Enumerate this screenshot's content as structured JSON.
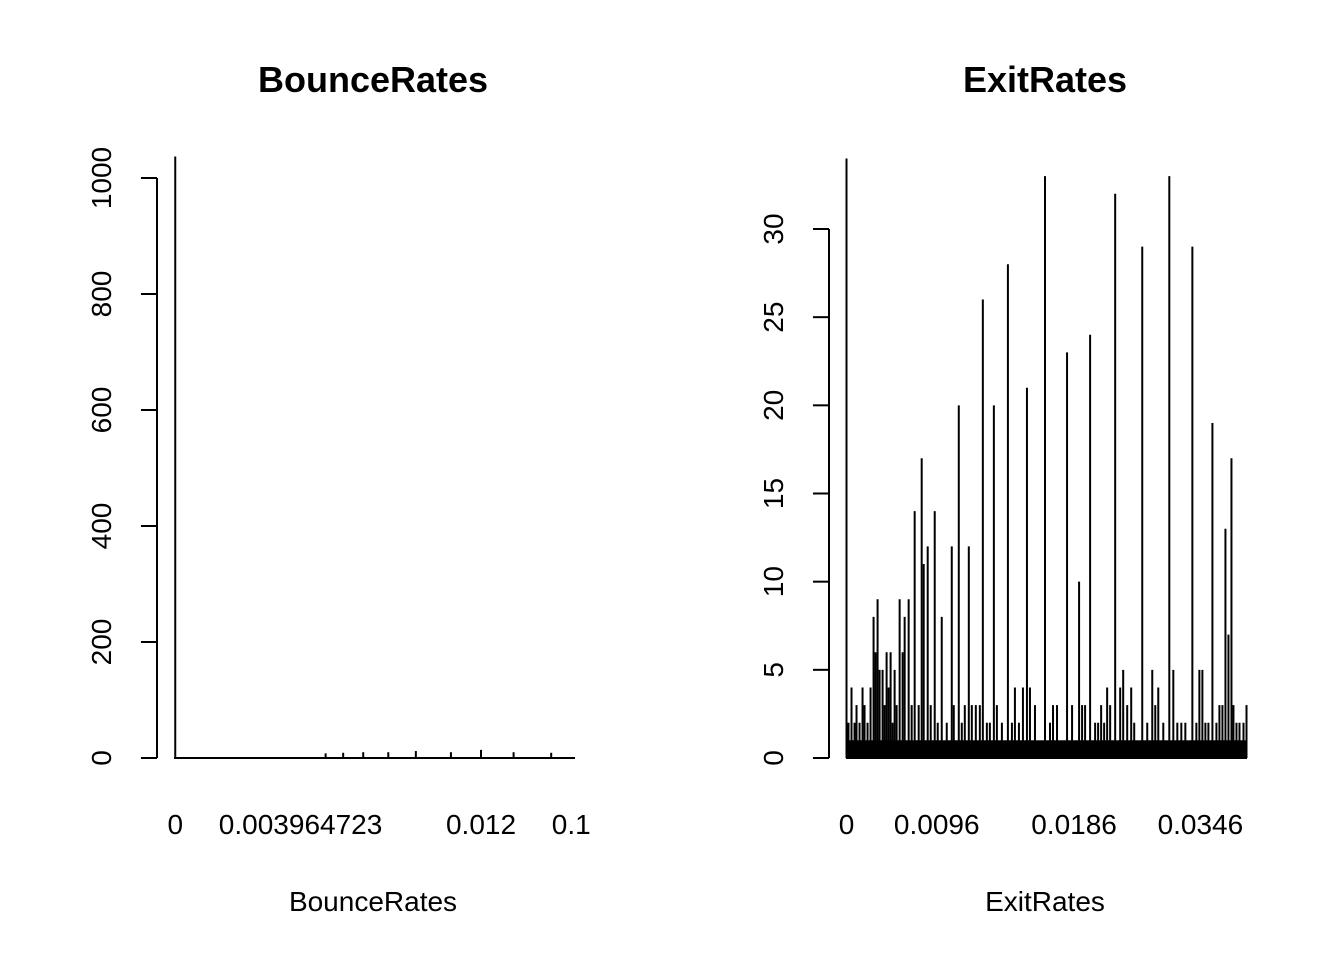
{
  "chart_data": [
    {
      "type": "bar",
      "title": "BounceRates",
      "xlabel": "BounceRates",
      "ylabel": "",
      "ylim": [
        0,
        1000
      ],
      "yticks": [
        "0",
        "200",
        "400",
        "600",
        "800",
        "1000"
      ],
      "xtick_labels": [
        {
          "label": "0",
          "index": 0
        },
        {
          "label": "0.003964723",
          "index": 50
        },
        {
          "label": "0.012",
          "index": 122
        },
        {
          "label": "0.1",
          "index": 158
        }
      ],
      "n_bins": 160,
      "baseline": 1,
      "peaks": [
        {
          "index": 0,
          "value": 1037
        },
        {
          "index": 60,
          "value": 8
        },
        {
          "index": 67,
          "value": 9
        },
        {
          "index": 75,
          "value": 10
        },
        {
          "index": 85,
          "value": 10
        },
        {
          "index": 96,
          "value": 12
        },
        {
          "index": 110,
          "value": 10
        },
        {
          "index": 122,
          "value": 14
        },
        {
          "index": 135,
          "value": 10
        },
        {
          "index": 150,
          "value": 9
        }
      ],
      "color": "#000000"
    },
    {
      "type": "bar",
      "title": "ExitRates",
      "xlabel": "ExitRates",
      "ylabel": "",
      "ylim": [
        0,
        30
      ],
      "yticks": [
        "0",
        "5",
        "10",
        "15",
        "20",
        "25",
        "30"
      ],
      "xtick_labels": [
        {
          "label": "0",
          "index": 0
        },
        {
          "label": "0.0096",
          "index": 90
        },
        {
          "label": "0.0186",
          "index": 227
        },
        {
          "label": "0.0346",
          "index": 353
        }
      ],
      "n_bins": 400,
      "baseline": 1,
      "peaks": [
        {
          "index": 0,
          "value": 34
        },
        {
          "index": 2,
          "value": 2
        },
        {
          "index": 5,
          "value": 4
        },
        {
          "index": 8,
          "value": 2
        },
        {
          "index": 10,
          "value": 3
        },
        {
          "index": 13,
          "value": 2
        },
        {
          "index": 16,
          "value": 4
        },
        {
          "index": 18,
          "value": 3
        },
        {
          "index": 21,
          "value": 2
        },
        {
          "index": 24,
          "value": 4
        },
        {
          "index": 27,
          "value": 8
        },
        {
          "index": 29,
          "value": 6
        },
        {
          "index": 31,
          "value": 9
        },
        {
          "index": 33,
          "value": 5
        },
        {
          "index": 36,
          "value": 5
        },
        {
          "index": 38,
          "value": 3
        },
        {
          "index": 40,
          "value": 6
        },
        {
          "index": 42,
          "value": 4
        },
        {
          "index": 44,
          "value": 6
        },
        {
          "index": 46,
          "value": 2
        },
        {
          "index": 48,
          "value": 5
        },
        {
          "index": 50,
          "value": 3
        },
        {
          "index": 53,
          "value": 9
        },
        {
          "index": 56,
          "value": 6
        },
        {
          "index": 58,
          "value": 8
        },
        {
          "index": 62,
          "value": 9
        },
        {
          "index": 65,
          "value": 3
        },
        {
          "index": 68,
          "value": 14
        },
        {
          "index": 72,
          "value": 3
        },
        {
          "index": 75,
          "value": 17
        },
        {
          "index": 77,
          "value": 11
        },
        {
          "index": 81,
          "value": 12
        },
        {
          "index": 84,
          "value": 3
        },
        {
          "index": 88,
          "value": 14
        },
        {
          "index": 91,
          "value": 2
        },
        {
          "index": 95,
          "value": 8
        },
        {
          "index": 100,
          "value": 2
        },
        {
          "index": 105,
          "value": 12
        },
        {
          "index": 107,
          "value": 3
        },
        {
          "index": 112,
          "value": 20
        },
        {
          "index": 115,
          "value": 2
        },
        {
          "index": 118,
          "value": 3
        },
        {
          "index": 122,
          "value": 12
        },
        {
          "index": 125,
          "value": 3
        },
        {
          "index": 129,
          "value": 3
        },
        {
          "index": 133,
          "value": 3
        },
        {
          "index": 136,
          "value": 26
        },
        {
          "index": 140,
          "value": 2
        },
        {
          "index": 143,
          "value": 2
        },
        {
          "index": 147,
          "value": 20
        },
        {
          "index": 150,
          "value": 3
        },
        {
          "index": 155,
          "value": 2
        },
        {
          "index": 161,
          "value": 28
        },
        {
          "index": 165,
          "value": 2
        },
        {
          "index": 168,
          "value": 4
        },
        {
          "index": 172,
          "value": 2
        },
        {
          "index": 176,
          "value": 4
        },
        {
          "index": 180,
          "value": 21
        },
        {
          "index": 183,
          "value": 4
        },
        {
          "index": 188,
          "value": 3
        },
        {
          "index": 198,
          "value": 33
        },
        {
          "index": 203,
          "value": 2
        },
        {
          "index": 206,
          "value": 3
        },
        {
          "index": 210,
          "value": 3
        },
        {
          "index": 220,
          "value": 23
        },
        {
          "index": 225,
          "value": 3
        },
        {
          "index": 232,
          "value": 10
        },
        {
          "index": 235,
          "value": 3
        },
        {
          "index": 238,
          "value": 3
        },
        {
          "index": 243,
          "value": 24
        },
        {
          "index": 248,
          "value": 2
        },
        {
          "index": 251,
          "value": 2
        },
        {
          "index": 254,
          "value": 3
        },
        {
          "index": 257,
          "value": 2
        },
        {
          "index": 260,
          "value": 4
        },
        {
          "index": 263,
          "value": 3
        },
        {
          "index": 268,
          "value": 32
        },
        {
          "index": 273,
          "value": 4
        },
        {
          "index": 276,
          "value": 5
        },
        {
          "index": 280,
          "value": 3
        },
        {
          "index": 284,
          "value": 4
        },
        {
          "index": 287,
          "value": 2
        },
        {
          "index": 295,
          "value": 29
        },
        {
          "index": 300,
          "value": 2
        },
        {
          "index": 305,
          "value": 5
        },
        {
          "index": 308,
          "value": 3
        },
        {
          "index": 311,
          "value": 4
        },
        {
          "index": 316,
          "value": 2
        },
        {
          "index": 322,
          "value": 33
        },
        {
          "index": 326,
          "value": 5
        },
        {
          "index": 330,
          "value": 2
        },
        {
          "index": 334,
          "value": 2
        },
        {
          "index": 338,
          "value": 2
        },
        {
          "index": 345,
          "value": 29
        },
        {
          "index": 349,
          "value": 2
        },
        {
          "index": 352,
          "value": 5
        },
        {
          "index": 355,
          "value": 5
        },
        {
          "index": 358,
          "value": 2
        },
        {
          "index": 361,
          "value": 2
        },
        {
          "index": 365,
          "value": 19
        },
        {
          "index": 369,
          "value": 2
        },
        {
          "index": 372,
          "value": 3
        },
        {
          "index": 375,
          "value": 3
        },
        {
          "index": 378,
          "value": 13
        },
        {
          "index": 381,
          "value": 7
        },
        {
          "index": 384,
          "value": 17
        },
        {
          "index": 386,
          "value": 3
        },
        {
          "index": 389,
          "value": 2
        },
        {
          "index": 392,
          "value": 2
        },
        {
          "index": 396,
          "value": 2
        },
        {
          "index": 399,
          "value": 3
        }
      ],
      "color": "#000000"
    }
  ]
}
